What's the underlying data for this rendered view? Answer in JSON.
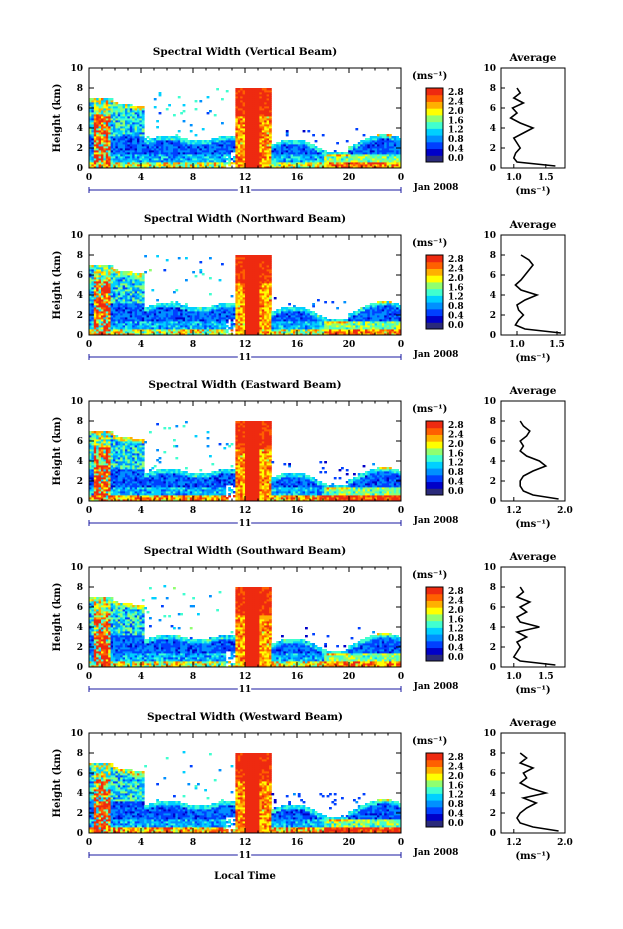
{
  "chart_data": {
    "type": "heatmap",
    "xlabel": "Local Time",
    "x_ticks": [
      "0",
      "4",
      "8",
      "12",
      "16",
      "20",
      "0"
    ],
    "xlim": [
      0,
      24
    ],
    "date_bar_label": "11",
    "date_label": "Jan 2008",
    "ylabel": "Height (km)",
    "ylim": [
      0,
      10
    ],
    "y_ticks": [
      "0",
      "2",
      "4",
      "6",
      "8",
      "10"
    ],
    "colorbar": {
      "unit_label": "(ms⁻¹)",
      "range": [
        0.0,
        2.8
      ],
      "tick_labels": [
        "0.0",
        "0.4",
        "0.8",
        "1.2",
        "1.6",
        "2.0",
        "2.4",
        "2.8"
      ],
      "colors": [
        "#2a2a7a",
        "#0000c8",
        "#0040ff",
        "#0090ff",
        "#00d0ff",
        "#40ffd0",
        "#90ff70",
        "#ffff00",
        "#ffb000",
        "#ff6000",
        "#ee2a10"
      ]
    },
    "profile_title": "Average",
    "profile_xlabel": "(ms⁻¹)",
    "panels": [
      {
        "title": "Spectral Width (Vertical Beam)",
        "profile_ticks": [
          "1.0",
          "1.5"
        ],
        "profile_xlim": [
          0.8,
          1.8
        ],
        "profile": {
          "height": [
            0.2,
            0.6,
            1.0,
            1.5,
            2.0,
            2.5,
            3.0,
            3.5,
            4.0,
            4.5,
            5.0,
            5.5,
            6.0,
            6.5,
            7.0,
            7.5,
            8.0
          ],
          "value": [
            1.65,
            1.05,
            1.0,
            1.03,
            1.1,
            1.05,
            1.0,
            1.15,
            1.3,
            1.1,
            0.95,
            1.05,
            0.98,
            1.15,
            1.0,
            1.1,
            1.05
          ]
        }
      },
      {
        "title": "Spectral Width (Northward Beam)",
        "profile_ticks": [
          "1.0",
          "1.5"
        ],
        "profile_xlim": [
          0.8,
          1.6
        ],
        "profile": {
          "height": [
            0.2,
            0.6,
            1.0,
            1.5,
            2.0,
            2.5,
            3.0,
            3.5,
            4.0,
            4.5,
            5.0,
            5.5,
            6.0,
            6.5,
            7.0,
            7.5,
            8.0
          ],
          "value": [
            1.55,
            1.1,
            0.98,
            1.02,
            1.08,
            1.02,
            1.0,
            1.1,
            1.25,
            1.05,
            0.98,
            1.05,
            1.1,
            1.15,
            1.2,
            1.15,
            1.05
          ]
        }
      },
      {
        "title": "Spectral Width (Eastward Beam)",
        "profile_ticks": [
          "1.2",
          "2.0"
        ],
        "profile_xlim": [
          1.0,
          2.0
        ],
        "profile": {
          "height": [
            0.2,
            0.6,
            1.0,
            1.5,
            2.0,
            2.5,
            3.0,
            3.5,
            4.0,
            4.5,
            5.0,
            5.5,
            6.0,
            6.5,
            7.0,
            7.5,
            8.0
          ],
          "value": [
            1.9,
            1.5,
            1.35,
            1.3,
            1.3,
            1.35,
            1.5,
            1.7,
            1.6,
            1.4,
            1.3,
            1.35,
            1.3,
            1.4,
            1.45,
            1.35,
            1.3
          ]
        }
      },
      {
        "title": "Spectral Width (Southward Beam)",
        "profile_ticks": [
          "1.0",
          "1.5"
        ],
        "profile_xlim": [
          0.8,
          1.8
        ],
        "profile": {
          "height": [
            0.2,
            0.6,
            1.0,
            1.5,
            2.0,
            2.5,
            3.0,
            3.5,
            4.0,
            4.5,
            5.0,
            5.5,
            6.0,
            6.5,
            7.0,
            7.5,
            8.0
          ],
          "value": [
            1.65,
            1.1,
            1.0,
            1.05,
            1.1,
            1.05,
            1.2,
            1.05,
            1.4,
            1.1,
            1.05,
            1.2,
            1.1,
            1.25,
            1.05,
            1.15,
            1.1
          ]
        }
      },
      {
        "title": "Spectral Width (Westward Beam)",
        "profile_ticks": [
          "1.2",
          "2.0"
        ],
        "profile_xlim": [
          1.0,
          2.0
        ],
        "profile": {
          "height": [
            0.2,
            0.6,
            1.0,
            1.5,
            2.0,
            2.5,
            3.0,
            3.5,
            4.0,
            4.5,
            5.0,
            5.5,
            6.0,
            6.5,
            7.0,
            7.5,
            8.0
          ],
          "value": [
            1.9,
            1.5,
            1.3,
            1.25,
            1.3,
            1.4,
            1.55,
            1.35,
            1.7,
            1.45,
            1.3,
            1.4,
            1.35,
            1.5,
            1.3,
            1.4,
            1.3
          ]
        }
      }
    ]
  }
}
